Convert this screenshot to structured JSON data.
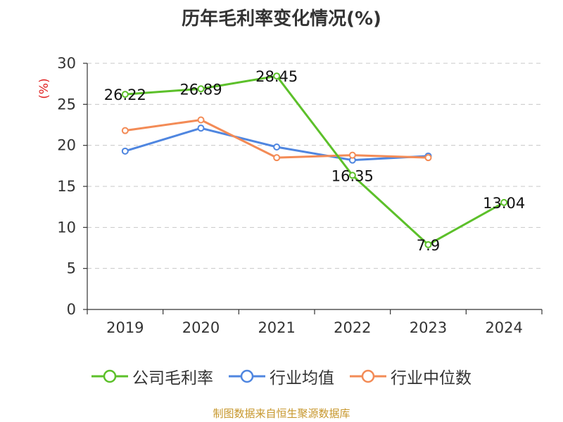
{
  "chart_data": {
    "type": "line",
    "title": "历年毛利率变化情况(%)",
    "ylabel": "(%)",
    "xlabel": "",
    "ylim": [
      0,
      30
    ],
    "yticks": [
      0,
      5,
      10,
      15,
      20,
      25,
      30
    ],
    "grid": true,
    "legend_position": "bottom",
    "categories": [
      "2019",
      "2020",
      "2021",
      "2022",
      "2023",
      "2024"
    ],
    "series": [
      {
        "name": "公司毛利率",
        "color": "#5cc02a",
        "values": [
          26.22,
          26.89,
          28.45,
          16.35,
          7.9,
          13.04
        ],
        "labels": [
          "26.22",
          "26.89",
          "28.45",
          "16.35",
          "7.9",
          "13.04"
        ]
      },
      {
        "name": "行业均值",
        "color": "#4f86e0",
        "values": [
          19.3,
          22.1,
          19.8,
          18.2,
          18.7,
          null
        ]
      },
      {
        "name": "行业中位数",
        "color": "#f38b56",
        "values": [
          21.8,
          23.1,
          18.5,
          18.8,
          18.5,
          null
        ]
      }
    ]
  },
  "footer": {
    "source": "制图数据来自恒生聚源数据库"
  }
}
